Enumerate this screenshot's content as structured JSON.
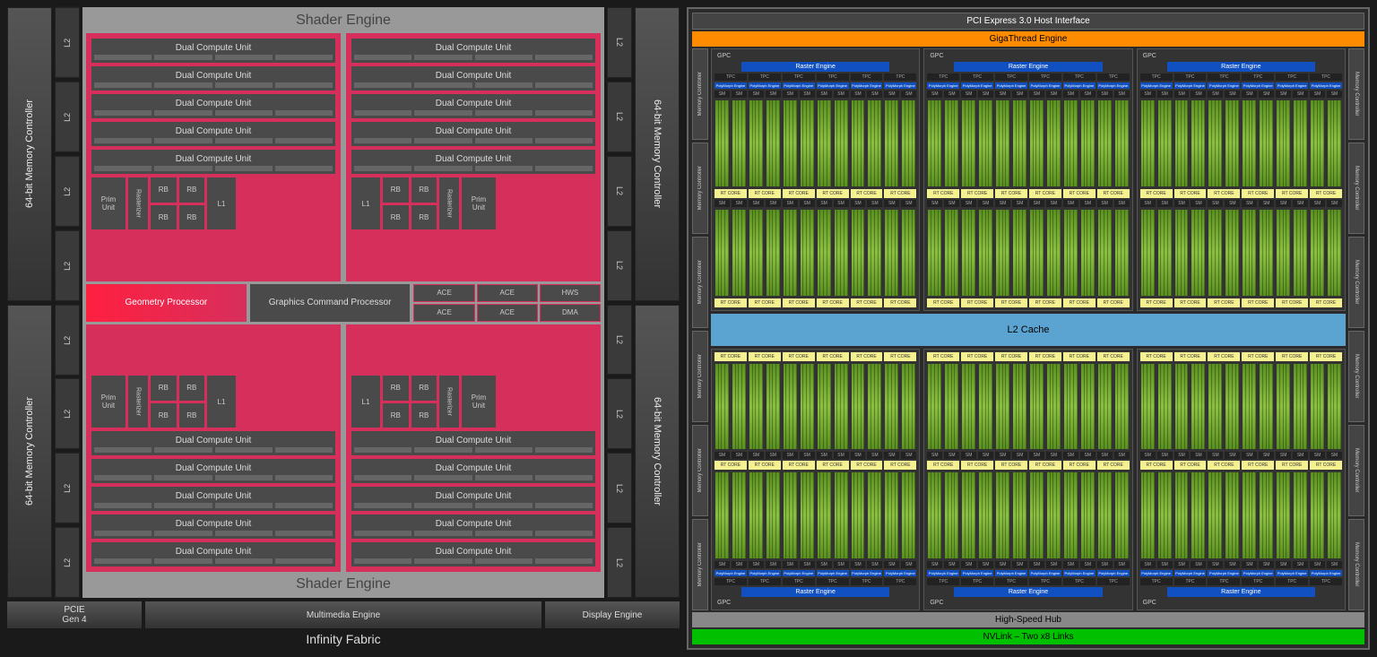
{
  "amd": {
    "shader_engine_label": "Shader Engine",
    "mem_ctrl_label": "64-bit Memory Controller",
    "l2_label": "L2",
    "dcu_label": "Dual Compute Unit",
    "dcu_count_per_engine": 5,
    "prim_unit": "Prim\nUnit",
    "rasterizer": "Rasterizer",
    "rb": "RB",
    "l1": "L1",
    "geom_proc": "Geometry Processor",
    "gcp": "Graphics Command Processor",
    "ace": "ACE",
    "hws": "HWS",
    "dma": "DMA",
    "pcie": "PCIE\nGen 4",
    "mm_engine": "Multimedia Engine",
    "disp_engine": "Display Engine",
    "infinity": "Infinity Fabric",
    "colors": {
      "shader_engine_bg": "#d72f5c",
      "block_bg": "#4a4a4a",
      "outer_bg": "#999999"
    }
  },
  "nvidia": {
    "pci": "PCI Express 3.0 Host Interface",
    "gigathread": "GigaThread Engine",
    "l2_cache": "L2 Cache",
    "hsh": "High-Speed Hub",
    "nvlink": "NVLink – Two x8 Links",
    "mem_ctrl": "Memory Controller",
    "gpc": "GPC",
    "raster": "Raster Engine",
    "tpc": "TPC",
    "polymorph": "PolyMorph Engine",
    "sm": "SM",
    "rt_core": "RT CORE",
    "gpc_count": 6,
    "tpc_per_gpc": 6,
    "colors": {
      "gigathread": "#ff8c00",
      "l2": "#5ba3d0",
      "nvlink": "#00c000",
      "raster": "#1050c0",
      "sm_core": "#6fa030",
      "rt_core": "#f5f090"
    }
  }
}
